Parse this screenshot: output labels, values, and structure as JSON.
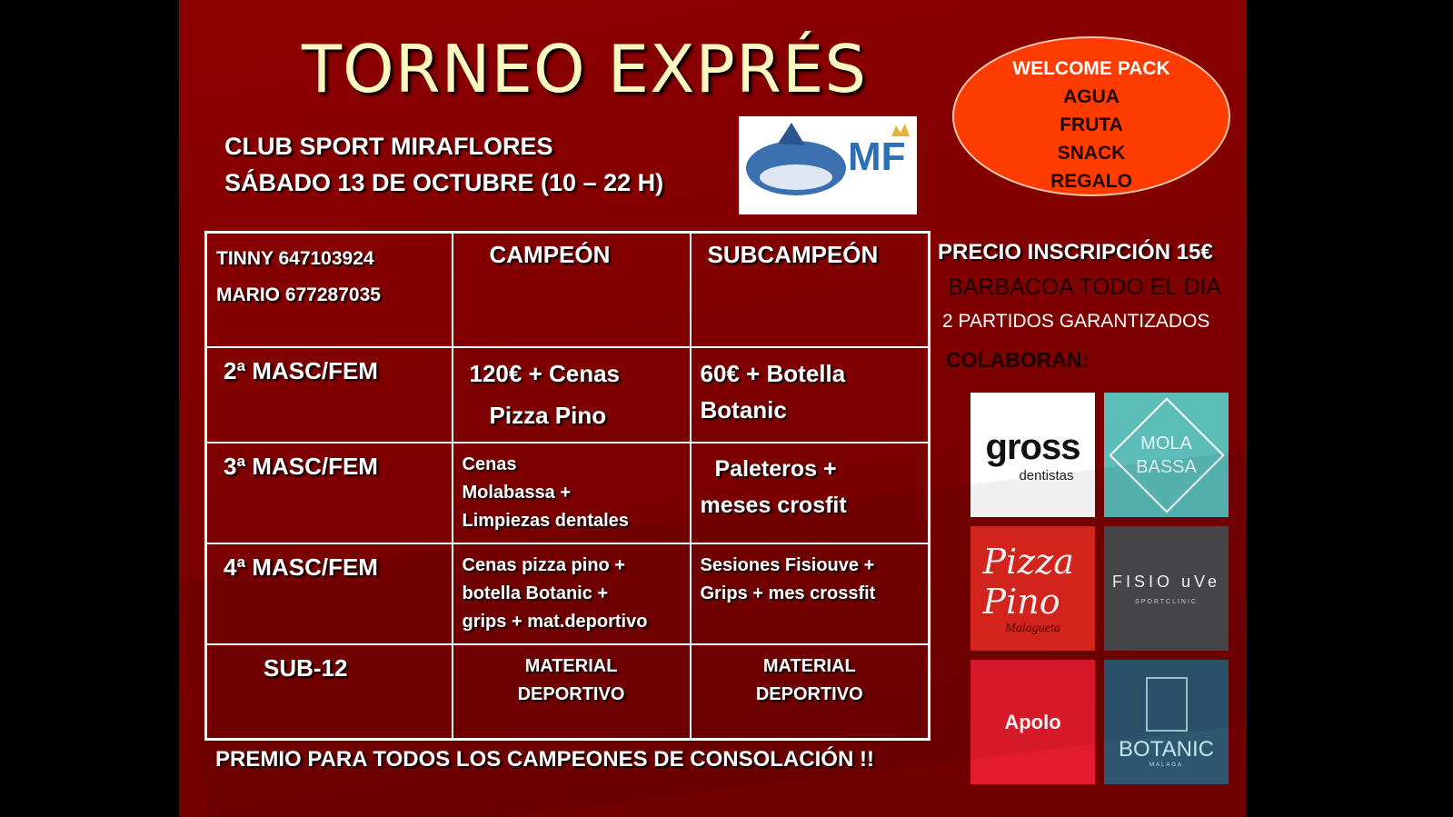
{
  "title": "TORNEO EXPRÉS",
  "club": "CLUB SPORT MIRAFLORES",
  "date": "SÁBADO 13 DE OCTUBRE (10 – 22 H)",
  "club_logo_text": "MF",
  "welcome_pack": [
    "WELCOME PACK",
    "AGUA",
    "FRUTA",
    "SNACK",
    "REGALO"
  ],
  "table": {
    "contacts": [
      "TINNY  647103924",
      "MARIO 677287035"
    ],
    "headers": [
      "CAMPEÓN",
      "SUBCAMPEÓN"
    ],
    "rows": [
      {
        "category": "2ª MASC/FEM",
        "champion": [
          "120€ + Cenas",
          "Pizza Pino"
        ],
        "runner_up": [
          "60€ + Botella",
          "Botanic"
        ]
      },
      {
        "category": "3ª MASC/FEM",
        "champion": [
          "Cenas",
          "Molabassa +",
          "Limpiezas dentales"
        ],
        "runner_up": [
          "Paleteros +",
          "meses crosfit"
        ]
      },
      {
        "category": "4ª MASC/FEM",
        "champion": [
          "Cenas pizza pino +",
          "botella Botanic +",
          "grips + mat.deportivo"
        ],
        "runner_up": [
          "Sesiones Fisiouve +",
          "Grips + mes crossfit"
        ]
      },
      {
        "category": "SUB-12",
        "champion": [
          "MATERIAL",
          "DEPORTIVO"
        ],
        "runner_up": [
          "MATERIAL",
          "DEPORTIVO"
        ]
      }
    ]
  },
  "price": "PRECIO INSCRIPCIÓN 15€",
  "bbq": "BARBACOA TODO EL DIA",
  "matches": "2 PARTIDOS GARANTIZADOS",
  "sponsors_label": "COLABORAN:",
  "sponsors": [
    {
      "name": "gross",
      "sub": "dentistas",
      "bg": "#ffffff"
    },
    {
      "name": "MOLA BASSA",
      "bg": "#5bbcb8"
    },
    {
      "name": "Pizza Pino",
      "sub": "Malagueta",
      "bg": "#e0261f"
    },
    {
      "name": "FISIO uVe",
      "sub": "SPORTCLINIC",
      "bg": "#4a4a4c"
    },
    {
      "name": "Apolo",
      "bg": "#e31b2c"
    },
    {
      "name": "BOTANIC",
      "sub": "MALAGA",
      "bg": "#2e5770"
    }
  ],
  "footer": "PREMIO PARA TODOS LOS CAMPEONES DE CONSOLACIÓN !!"
}
